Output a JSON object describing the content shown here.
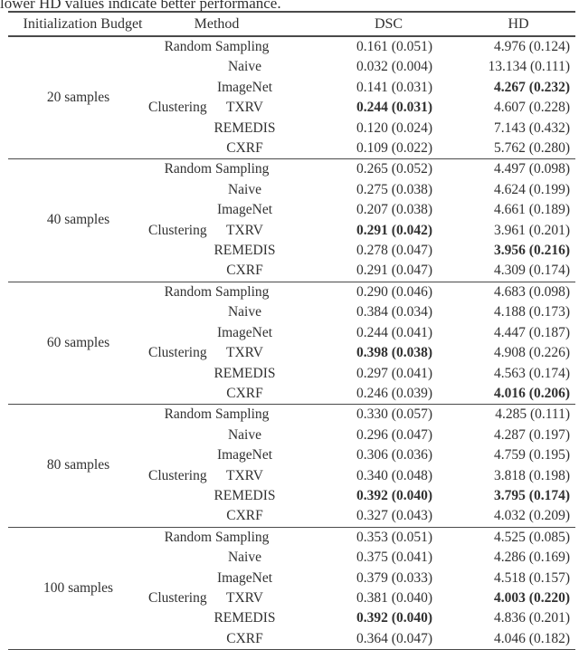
{
  "caption": "lower HD values indicate better performance.",
  "header": {
    "budget": "Initialization Budget",
    "method": "Method",
    "dsc": "DSC",
    "hd": "HD"
  },
  "groups": [
    {
      "budget": "20 samples",
      "cluster_label": "Clustering",
      "rows": [
        {
          "method": "Random Sampling",
          "dsc": "0.161 (0.051)",
          "hd": "4.976 (0.124)",
          "dsc_bold": false,
          "hd_bold": false
        },
        {
          "method": "Naive",
          "dsc": "0.032 (0.004)",
          "hd": "13.134 (0.111)",
          "dsc_bold": false,
          "hd_bold": false
        },
        {
          "method": "ImageNet",
          "dsc": "0.141 (0.031)",
          "hd": "4.267 (0.232)",
          "dsc_bold": false,
          "hd_bold": true
        },
        {
          "method": "TXRV",
          "dsc": "0.244 (0.031)",
          "hd": "4.607 (0.228)",
          "dsc_bold": true,
          "hd_bold": false
        },
        {
          "method": "REMEDIS",
          "dsc": "0.120 (0.024)",
          "hd": "7.143 (0.432)",
          "dsc_bold": false,
          "hd_bold": false
        },
        {
          "method": "CXRF",
          "dsc": "0.109 (0.022)",
          "hd": "5.762 (0.280)",
          "dsc_bold": false,
          "hd_bold": false
        }
      ]
    },
    {
      "budget": "40 samples",
      "cluster_label": "Clustering",
      "rows": [
        {
          "method": "Random Sampling",
          "dsc": "0.265 (0.052)",
          "hd": "4.497 (0.098)",
          "dsc_bold": false,
          "hd_bold": false
        },
        {
          "method": "Naive",
          "dsc": "0.275 (0.038)",
          "hd": "4.624 (0.199)",
          "dsc_bold": false,
          "hd_bold": false
        },
        {
          "method": "ImageNet",
          "dsc": "0.207 (0.038)",
          "hd": "4.661 (0.189)",
          "dsc_bold": false,
          "hd_bold": false
        },
        {
          "method": "TXRV",
          "dsc": "0.291 (0.042)",
          "hd": "3.961 (0.201)",
          "dsc_bold": true,
          "hd_bold": false
        },
        {
          "method": "REMEDIS",
          "dsc": "0.278 (0.047)",
          "hd": "3.956 (0.216)",
          "dsc_bold": false,
          "hd_bold": true
        },
        {
          "method": "CXRF",
          "dsc": "0.291 (0.047)",
          "hd": "4.309 (0.174)",
          "dsc_bold": false,
          "hd_bold": false
        }
      ]
    },
    {
      "budget": "60 samples",
      "cluster_label": "Clustering",
      "rows": [
        {
          "method": "Random Sampling",
          "dsc": "0.290 (0.046)",
          "hd": "4.683 (0.098)",
          "dsc_bold": false,
          "hd_bold": false
        },
        {
          "method": "Naive",
          "dsc": "0.384 (0.034)",
          "hd": "4.188 (0.173)",
          "dsc_bold": false,
          "hd_bold": false
        },
        {
          "method": "ImageNet",
          "dsc": "0.244 (0.041)",
          "hd": "4.447 (0.187)",
          "dsc_bold": false,
          "hd_bold": false
        },
        {
          "method": "TXRV",
          "dsc": "0.398 (0.038)",
          "hd": "4.908 (0.226)",
          "dsc_bold": true,
          "hd_bold": false
        },
        {
          "method": "REMEDIS",
          "dsc": "0.297 (0.041)",
          "hd": "4.563 (0.174)",
          "dsc_bold": false,
          "hd_bold": false
        },
        {
          "method": "CXRF",
          "dsc": "0.246 (0.039)",
          "hd": "4.016 (0.206)",
          "dsc_bold": false,
          "hd_bold": true
        }
      ]
    },
    {
      "budget": "80 samples",
      "cluster_label": "Clustering",
      "rows": [
        {
          "method": "Random Sampling",
          "dsc": "0.330 (0.057)",
          "hd": "4.285 (0.111)",
          "dsc_bold": false,
          "hd_bold": false
        },
        {
          "method": "Naive",
          "dsc": "0.296 (0.047)",
          "hd": "4.287 (0.197)",
          "dsc_bold": false,
          "hd_bold": false
        },
        {
          "method": "ImageNet",
          "dsc": "0.306 (0.036)",
          "hd": "4.759 (0.195)",
          "dsc_bold": false,
          "hd_bold": false
        },
        {
          "method": "TXRV",
          "dsc": "0.340 (0.048)",
          "hd": "3.818 (0.198)",
          "dsc_bold": false,
          "hd_bold": false
        },
        {
          "method": "REMEDIS",
          "dsc": "0.392 (0.040)",
          "hd": "3.795 (0.174)",
          "dsc_bold": true,
          "hd_bold": true
        },
        {
          "method": "CXRF",
          "dsc": "0.327 (0.043)",
          "hd": "4.032 (0.209)",
          "dsc_bold": false,
          "hd_bold": false
        }
      ]
    },
    {
      "budget": "100 samples",
      "cluster_label": "Clustering",
      "rows": [
        {
          "method": "Random Sampling",
          "dsc": "0.353 (0.051)",
          "hd": "4.525 (0.085)",
          "dsc_bold": false,
          "hd_bold": false
        },
        {
          "method": "Naive",
          "dsc": "0.375 (0.041)",
          "hd": "4.286 (0.169)",
          "dsc_bold": false,
          "hd_bold": false
        },
        {
          "method": "ImageNet",
          "dsc": "0.379 (0.033)",
          "hd": "4.518 (0.157)",
          "dsc_bold": false,
          "hd_bold": false
        },
        {
          "method": "TXRV",
          "dsc": "0.381 (0.040)",
          "hd": "4.003 (0.220)",
          "dsc_bold": false,
          "hd_bold": true
        },
        {
          "method": "REMEDIS",
          "dsc": "0.392 (0.040)",
          "hd": "4.836 (0.201)",
          "dsc_bold": true,
          "hd_bold": false
        },
        {
          "method": "CXRF",
          "dsc": "0.364 (0.047)",
          "hd": "4.046 (0.182)",
          "dsc_bold": false,
          "hd_bold": false
        }
      ]
    }
  ]
}
